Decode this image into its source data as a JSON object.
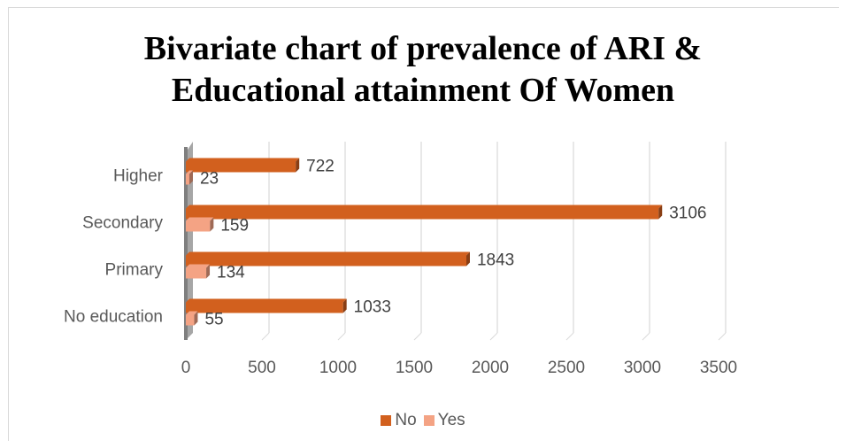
{
  "chart_data": {
    "type": "bar",
    "orientation": "horizontal",
    "title": [
      "Bivariate chart of prevalence of ARI &",
      "Educational attainment Of Women"
    ],
    "categories": [
      "No education",
      "Primary",
      "Secondary",
      "Higher"
    ],
    "series": [
      {
        "name": "No",
        "values": [
          1033,
          1843,
          3106,
          722
        ],
        "color": "#d2601e"
      },
      {
        "name": "Yes",
        "values": [
          55,
          134,
          159,
          23
        ],
        "color": "#f4a384"
      }
    ],
    "xlim": [
      0,
      3500
    ],
    "ticks": [
      0,
      500,
      1000,
      1500,
      2000,
      2500,
      3000,
      3500
    ],
    "grid": true,
    "legend": "bottom",
    "style": "3d-bar"
  }
}
